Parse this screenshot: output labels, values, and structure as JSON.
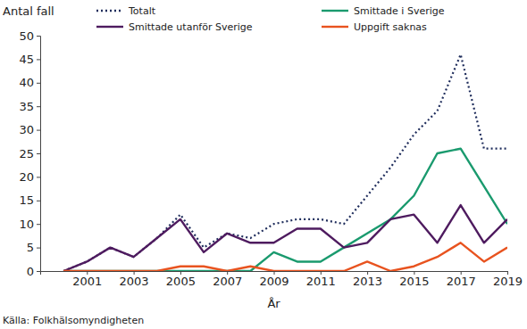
{
  "chart_data": {
    "type": "line",
    "y_label": "Antal fall",
    "x_label": "År",
    "source": "Källa: Folkhälsomyndigheten",
    "x": [
      2000,
      2001,
      2002,
      2003,
      2004,
      2005,
      2006,
      2007,
      2008,
      2009,
      2010,
      2011,
      2012,
      2013,
      2014,
      2015,
      2016,
      2017,
      2018,
      2019
    ],
    "series": [
      {
        "name": "Totalt",
        "color": "#1f2d5c",
        "line_style": "dotted",
        "values": [
          0,
          2,
          5,
          3,
          7,
          12,
          5,
          8,
          7,
          10,
          11,
          11,
          10,
          16,
          22,
          29,
          34,
          46,
          26,
          26
        ]
      },
      {
        "name": "Smittade i Sverige",
        "color": "#1a9a6e",
        "line_style": "solid",
        "values": [
          0,
          0,
          0,
          0,
          0,
          0,
          0,
          0,
          0,
          4,
          2,
          2,
          5,
          8,
          11,
          16,
          25,
          26,
          18,
          10
        ]
      },
      {
        "name": "Smittade utanför Sverige",
        "color": "#4e1b5f",
        "line_style": "solid",
        "values": [
          0,
          2,
          5,
          3,
          7,
          11,
          4,
          8,
          6,
          6,
          9,
          9,
          5,
          6,
          11,
          12,
          6,
          14,
          6,
          11
        ]
      },
      {
        "name": "Uppgift saknas",
        "color": "#e8531f",
        "line_style": "solid",
        "values": [
          0,
          0,
          0,
          0,
          0,
          1,
          1,
          0,
          1,
          0,
          0,
          0,
          0,
          2,
          0,
          1,
          3,
          6,
          2,
          5
        ]
      }
    ],
    "xlim": [
      1999,
      2019
    ],
    "xticks": [
      2001,
      2003,
      2005,
      2007,
      2009,
      2011,
      2013,
      2015,
      2017,
      2019
    ],
    "ylim": [
      0,
      50
    ],
    "yticks": [
      0,
      5,
      10,
      15,
      20,
      25,
      30,
      35,
      40,
      45,
      50
    ],
    "grid": false,
    "legend": "top"
  }
}
